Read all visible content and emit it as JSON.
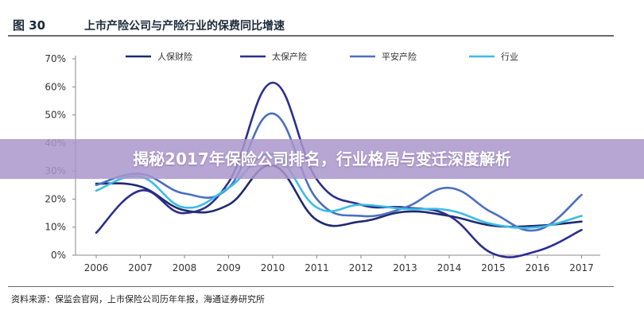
{
  "figure": {
    "number": "图 30",
    "title": "上市产险公司与产险行业的保费同比增速",
    "source": "资料来源：保监会官网，上市保险公司历年年报，海通证券研究所"
  },
  "banner": {
    "text": "揭秘2017年保险公司排名，行业格局与变迁深度解析",
    "color": "#a996cd"
  },
  "chart_data": {
    "type": "line",
    "title": "上市产险公司与产险行业的保费同比增速",
    "xlabel": "",
    "ylabel": "",
    "categories": [
      "2006",
      "2007",
      "2008",
      "2009",
      "2010",
      "2011",
      "2012",
      "2013",
      "2014",
      "2015",
      "2016",
      "2017"
    ],
    "y_ticks": [
      "0%",
      "10%",
      "20%",
      "30%",
      "40%",
      "50%",
      "60%",
      "70%"
    ],
    "ylim": [
      0,
      70
    ],
    "grid": false,
    "legend_position": "top",
    "series": [
      {
        "name": "人保财险",
        "color": "#1f2a6e",
        "values": [
          25.5,
          24.5,
          16,
          18,
          32,
          12.5,
          12,
          15.5,
          14,
          10.5,
          10.5,
          12
        ]
      },
      {
        "name": "太保产险",
        "color": "#2b2e8e",
        "values": [
          8,
          23,
          15,
          26,
          61.5,
          27,
          18,
          17,
          14,
          0.5,
          1.5,
          9
        ]
      },
      {
        "name": "平安产险",
        "color": "#4c6fc1",
        "values": [
          25,
          29,
          22,
          24,
          50.5,
          20,
          14,
          17,
          24,
          15,
          9,
          21.5
        ]
      },
      {
        "name": "行业",
        "color": "#3cbce6",
        "values": [
          23,
          28,
          17,
          24,
          36,
          17,
          18,
          16.5,
          16,
          11,
          10,
          14
        ]
      }
    ]
  }
}
